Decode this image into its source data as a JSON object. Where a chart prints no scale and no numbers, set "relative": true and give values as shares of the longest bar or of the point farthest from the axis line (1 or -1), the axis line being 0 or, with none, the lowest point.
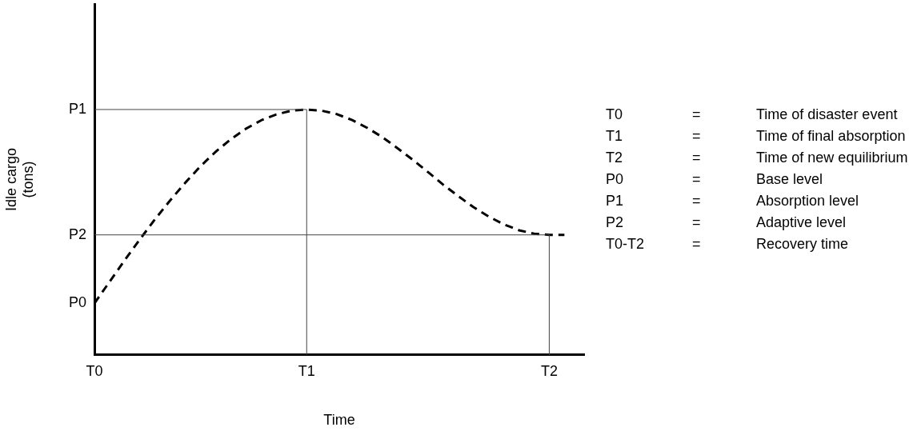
{
  "chart_data": {
    "type": "line",
    "relative": true,
    "xlabel": "Time",
    "ylabel": "Idle cargo\n(tons)",
    "categories": [
      "T0",
      null,
      null,
      null,
      null,
      null,
      null,
      null,
      null,
      null,
      null,
      null,
      null,
      null,
      "T1",
      null,
      null,
      null,
      null,
      null,
      null,
      null,
      null,
      null,
      null,
      null,
      null,
      null,
      null,
      null,
      "T2",
      null
    ],
    "series": [
      {
        "color": "#000000",
        "line_style": "dashed",
        "marker": "none",
        "values": [
          0.21,
          0.298,
          0.386,
          0.471,
          0.553,
          0.63,
          0.702,
          0.769,
          0.828,
          0.879,
          0.922,
          0.956,
          0.98,
          0.995,
          1,
          0.995,
          0.981,
          0.957,
          0.925,
          0.887,
          0.842,
          0.795,
          0.745,
          0.694,
          0.647,
          0.602,
          0.564,
          0.532,
          0.508,
          0.494,
          0.489,
          0.489
        ]
      }
    ],
    "ref_lines": [
      {
        "axis": "y",
        "value": 1,
        "label": "P1"
      },
      {
        "axis": "y",
        "value": 0.489,
        "label": "P2"
      },
      {
        "axis": "x",
        "value": "T1"
      },
      {
        "axis": "x",
        "value": "T2"
      }
    ],
    "annotations": [
      {
        "text": "P0",
        "x": "T0",
        "y": 0.21
      },
      "T0 = Time of disaster event",
      "T1 = Time of final absorption",
      "T2 = Time of new equilibrium",
      "P0 = Base level",
      "P1 = Absorption level",
      "P2 = Adaptive level",
      "T0-T2 = Recovery time"
    ],
    "grid": false,
    "legend": false
  }
}
